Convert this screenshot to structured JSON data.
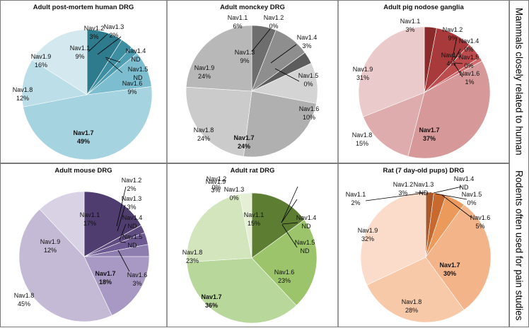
{
  "row_labels": {
    "top": "Mammals closely related to human",
    "bottom": "Rodents often used for pain studies"
  },
  "chart_data": [
    {
      "type": "pie",
      "title": "Adult post-mortem human DRG",
      "slices": [
        {
          "label": "Nav1.1",
          "pct_text": "9%",
          "value": 9,
          "color": "#2e7b8e"
        },
        {
          "label": "Nav1.2",
          "pct_text": "3%",
          "value": 3,
          "color": "#3d8ea0"
        },
        {
          "label": "Nav1.3",
          "pct_text": "2%",
          "value": 2,
          "color": "#4f9db0"
        },
        {
          "label": "Nav1.4",
          "pct_text": "ND",
          "value": 0,
          "color": "#5aa8ba"
        },
        {
          "label": "Nav1.5",
          "pct_text": "ND",
          "value": 0,
          "color": "#5aa8ba"
        },
        {
          "label": "Nav1.6",
          "pct_text": "9%",
          "value": 9,
          "color": "#7cbdcf"
        },
        {
          "label": "Nav1.7",
          "pct_text": "49%",
          "value": 49,
          "color": "#a6d3e0",
          "bold": true
        },
        {
          "label": "Nav1.8",
          "pct_text": "12%",
          "value": 12,
          "color": "#bcdee8"
        },
        {
          "label": "Nav1.9",
          "pct_text": "16%",
          "value": 16,
          "color": "#d3e8ef"
        }
      ]
    },
    {
      "type": "pie",
      "title": "Adult monckey DRG",
      "slices": [
        {
          "label": "Nav1.1",
          "pct_text": "6%",
          "value": 6,
          "color": "#6e6e6e"
        },
        {
          "label": "Nav1.2",
          "pct_text": "0%",
          "value": 0,
          "color": "#6e6e6e"
        },
        {
          "label": "Nav1.3",
          "pct_text": "9%",
          "value": 9,
          "color": "#8e8e8e"
        },
        {
          "label": "Nav1.4",
          "pct_text": "3%",
          "value": 3,
          "color": "#5c5c5c"
        },
        {
          "label": "Nav1.5",
          "pct_text": "0%",
          "value": 0,
          "color": "#5c5c5c"
        },
        {
          "label": "Nav1.6",
          "pct_text": "10%",
          "value": 10,
          "color": "#d4d4d4"
        },
        {
          "label": "Nav1.7",
          "pct_text": "24%",
          "value": 24,
          "color": "#b0b0b0",
          "bold": true
        },
        {
          "label": "Nav1.8",
          "pct_text": "24%",
          "value": 24,
          "color": "#cbcbcb"
        },
        {
          "label": "Nav1.9",
          "pct_text": "24%",
          "value": 24,
          "color": "#b8b8b8"
        }
      ]
    },
    {
      "type": "pie",
      "title": "Adult pig nodose ganglia",
      "slices": [
        {
          "label": "Nav1.1",
          "pct_text": "3%",
          "value": 3,
          "color": "#8a2a2a"
        },
        {
          "label": "Nav1.2",
          "pct_text": "9%",
          "value": 9,
          "color": "#a83a3c"
        },
        {
          "label": "Nav1.3",
          "pct_text": "4%",
          "value": 4,
          "color": "#bd4c4e"
        },
        {
          "label": "Nav1.4",
          "pct_text": "0%",
          "value": 0,
          "color": "#c85a5c"
        },
        {
          "label": "Nav1.5",
          "pct_text": "0%",
          "value": 0,
          "color": "#c85a5c"
        },
        {
          "label": "Nav1.6",
          "pct_text": "1%",
          "value": 1,
          "color": "#d06a6c"
        },
        {
          "label": "Nav1.7",
          "pct_text": "37%",
          "value": 37,
          "color": "#d7989a",
          "bold": true
        },
        {
          "label": "Nav1.8",
          "pct_text": "15%",
          "value": 15,
          "color": "#dfacad"
        },
        {
          "label": "Nav1.9",
          "pct_text": "31%",
          "value": 31,
          "color": "#ebcacb"
        }
      ]
    },
    {
      "type": "pie",
      "title": "Adult mouse DRG",
      "slices": [
        {
          "label": "Nav1.1",
          "pct_text": "17%",
          "value": 17,
          "color": "#4e3d6e"
        },
        {
          "label": "Nav1.2",
          "pct_text": "2%",
          "value": 2,
          "color": "#5e4b80"
        },
        {
          "label": "Nav1.3",
          "pct_text": "3%",
          "value": 3,
          "color": "#6e5a92"
        },
        {
          "label": "Nav1.4",
          "pct_text": "ND",
          "value": 0,
          "color": "#7b68a0"
        },
        {
          "label": "Nav1.5",
          "pct_text": "ND",
          "value": 0,
          "color": "#7b68a0"
        },
        {
          "label": "Nav1.6",
          "pct_text": "3%",
          "value": 3,
          "color": "#8d7eaf"
        },
        {
          "label": "Nav1.7",
          "pct_text": "18%",
          "value": 18,
          "color": "#a799c3",
          "bold": true
        },
        {
          "label": "Nav1.8",
          "pct_text": "45%",
          "value": 45,
          "color": "#c4bad5"
        },
        {
          "label": "Nav1.9",
          "pct_text": "12%",
          "value": 12,
          "color": "#d9d2e5"
        }
      ]
    },
    {
      "type": "pie",
      "title": "Adult rat DRG",
      "slices": [
        {
          "label": "Nav1.1",
          "pct_text": "15%",
          "value": 15,
          "color": "#5d7e32"
        },
        {
          "label": "Nav1.2",
          "pct_text": "0%",
          "value": 0,
          "color": "#5d7e32"
        },
        {
          "label": "Nav1.3",
          "pct_text": "0%",
          "value": 0,
          "color": "#5d7e32"
        },
        {
          "label": "Nav1.4",
          "pct_text": "ND",
          "value": 0,
          "color": "#6e9440"
        },
        {
          "label": "Nav1.5",
          "pct_text": "ND",
          "value": 0,
          "color": "#6e9440"
        },
        {
          "label": "Nav1.6",
          "pct_text": "23%",
          "value": 23,
          "color": "#9cc56b"
        },
        {
          "label": "Nav1.7",
          "pct_text": "36%",
          "value": 36,
          "color": "#b8d79a",
          "bold": true
        },
        {
          "label": "Nav1.8",
          "pct_text": "23%",
          "value": 23,
          "color": "#d2e5bc"
        },
        {
          "label": "Nav1.9",
          "pct_text": "3%",
          "value": 3,
          "color": "#e4efd6"
        }
      ]
    },
    {
      "type": "pie",
      "title": "Rat (7 day-old  pups) DRG",
      "slices": [
        {
          "label": "Nav1.1",
          "pct_text": "2%",
          "value": 2,
          "color": "#a8582a"
        },
        {
          "label": "Nav1.2",
          "pct_text": "3%",
          "value": 3,
          "color": "#c86a30"
        },
        {
          "label": "Nav1.3",
          "pct_text": "ND",
          "value": 0,
          "color": "#d97b3e"
        },
        {
          "label": "Nav1.4",
          "pct_text": "ND",
          "value": 0,
          "color": "#d97b3e"
        },
        {
          "label": "Nav1.5",
          "pct_text": "0%",
          "value": 0,
          "color": "#d97b3e"
        },
        {
          "label": "Nav1.6",
          "pct_text": "5%",
          "value": 5,
          "color": "#eb9a5c"
        },
        {
          "label": "Nav1.7",
          "pct_text": "30%",
          "value": 30,
          "color": "#f4b48a",
          "bold": true
        },
        {
          "label": "Nav1.8",
          "pct_text": "28%",
          "value": 28,
          "color": "#f8c9a9"
        },
        {
          "label": "Nav1.9",
          "pct_text": "32%",
          "value": 32,
          "color": "#fbdccb"
        }
      ]
    }
  ]
}
